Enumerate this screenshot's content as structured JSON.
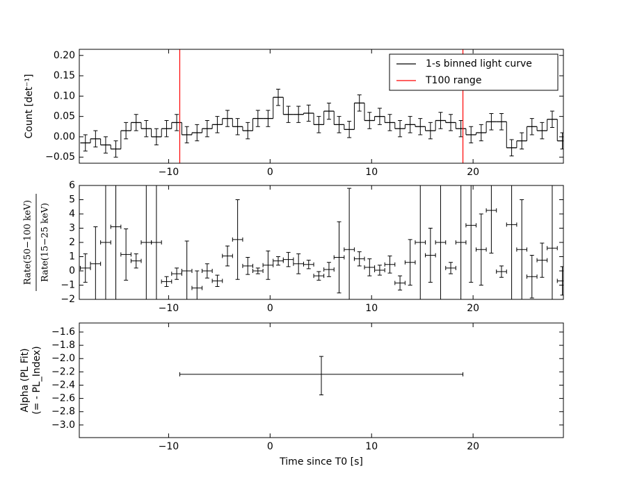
{
  "chart_data": [
    {
      "type": "step",
      "ylabel": "Count [det⁻¹]",
      "xlim": [
        -18.8,
        28.9
      ],
      "ylim": [
        -0.065,
        0.215
      ],
      "xticks": [
        {
          "value": -10,
          "label": "−10"
        },
        0,
        10,
        20
      ],
      "yticks": [
        {
          "value": -0.05,
          "label": "−0.05"
        },
        {
          "value": 0,
          "label": "0.00"
        },
        {
          "value": 0.05,
          "label": "0.05"
        },
        {
          "value": 0.1,
          "label": "0.10"
        },
        {
          "value": 0.15,
          "label": "0.15"
        },
        {
          "value": 0.2,
          "label": "0.20"
        }
      ],
      "legend": "upper right",
      "series": [
        {
          "name": "1-s binned light curve",
          "color": "#000000",
          "x": [
            -18.2,
            -17.2,
            -16.2,
            -15.2,
            -14.2,
            -13.2,
            -12.2,
            -11.2,
            -10.2,
            -9.2,
            -8.2,
            -7.2,
            -6.2,
            -5.2,
            -4.2,
            -3.2,
            -2.2,
            -1.2,
            -0.2,
            0.8,
            1.8,
            2.8,
            3.8,
            4.8,
            5.8,
            6.8,
            7.8,
            8.8,
            9.8,
            10.8,
            11.8,
            12.8,
            13.8,
            14.8,
            15.8,
            16.8,
            17.8,
            18.8,
            19.8,
            20.8,
            21.8,
            22.8,
            23.8,
            24.8,
            25.8,
            26.8,
            27.8,
            28.8
          ],
          "bin_width": 1,
          "values": [
            -0.015,
            -0.005,
            -0.02,
            -0.03,
            0.015,
            0.035,
            0.02,
            0.0,
            0.02,
            0.035,
            0.005,
            0.01,
            0.02,
            0.03,
            0.045,
            0.025,
            0.015,
            0.045,
            0.045,
            0.097,
            0.055,
            0.055,
            0.058,
            0.03,
            0.063,
            0.03,
            0.018,
            0.083,
            0.04,
            0.05,
            0.035,
            0.02,
            0.03,
            0.025,
            0.015,
            0.04,
            0.035,
            0.02,
            0.005,
            0.01,
            0.037,
            0.037,
            -0.027,
            -0.01,
            0.025,
            0.015,
            0.043,
            -0.01
          ],
          "errors": [
            0.02,
            0.02,
            0.02,
            0.02,
            0.02,
            0.02,
            0.02,
            0.02,
            0.02,
            0.02,
            0.02,
            0.02,
            0.02,
            0.02,
            0.02,
            0.02,
            0.02,
            0.02,
            0.02,
            0.02,
            0.02,
            0.02,
            0.02,
            0.02,
            0.02,
            0.02,
            0.02,
            0.02,
            0.02,
            0.02,
            0.02,
            0.02,
            0.02,
            0.02,
            0.02,
            0.02,
            0.02,
            0.02,
            0.02,
            0.02,
            0.02,
            0.02,
            0.02,
            0.02,
            0.02,
            0.02,
            0.02,
            0.02
          ]
        },
        {
          "name": "T100 range",
          "color": "#ff0000",
          "vlines": [
            -8.9,
            19.0
          ]
        }
      ]
    },
    {
      "type": "errorbar",
      "ylabel": [
        "Rate(50−100 keV)",
        "Rate(15−25 keV)"
      ],
      "xlim": [
        -18.8,
        28.9
      ],
      "ylim": [
        -2,
        6
      ],
      "xticks": [
        {
          "value": -10,
          "label": "−10"
        },
        0,
        10,
        20
      ],
      "yticks": [
        {
          "value": -2,
          "label": "−2"
        },
        {
          "value": -1,
          "label": "−1"
        },
        0,
        1,
        2,
        3,
        4,
        5,
        6
      ],
      "color": "#000000",
      "x": [
        -18.2,
        -17.2,
        -16.2,
        -15.2,
        -14.2,
        -13.2,
        -12.2,
        -11.2,
        -10.2,
        -9.2,
        -8.2,
        -7.2,
        -6.2,
        -5.2,
        -4.2,
        -3.2,
        -2.2,
        -1.2,
        -0.2,
        0.8,
        1.8,
        2.8,
        3.8,
        4.8,
        5.8,
        6.8,
        7.8,
        8.8,
        9.8,
        10.8,
        11.8,
        12.8,
        13.8,
        14.8,
        15.8,
        16.8,
        17.8,
        18.8,
        19.8,
        20.8,
        21.8,
        22.8,
        23.8,
        24.8,
        25.8,
        26.8,
        27.8,
        28.8
      ],
      "xerr": 0.5,
      "values": [
        0.2,
        0.5,
        2,
        3.1,
        1.15,
        0.7,
        2,
        2,
        -0.75,
        -0.2,
        0,
        -1.2,
        0,
        -0.7,
        1.05,
        2.2,
        0.35,
        0,
        0.4,
        0.7,
        0.8,
        0.5,
        0.45,
        -0.35,
        0.1,
        0.95,
        1.5,
        0.85,
        0.25,
        0.05,
        0.45,
        -0.85,
        0.6,
        2,
        1.1,
        2,
        0.2,
        2,
        3.2,
        1.5,
        4.25,
        -0.05,
        3.25,
        1.5,
        -0.4,
        0.75,
        1.6,
        -0.7
      ],
      "errors": [
        1.0,
        2.6,
        8,
        6,
        1.8,
        0.5,
        8,
        8,
        0.35,
        0.4,
        2.1,
        1.2,
        0.5,
        0.4,
        0.7,
        2.8,
        0.6,
        0.2,
        1.0,
        0.3,
        0.5,
        0.7,
        0.3,
        0.3,
        0.5,
        2.5,
        4.3,
        0.5,
        0.6,
        0.35,
        0.6,
        0.5,
        1.6,
        8,
        1.9,
        8,
        0.4,
        8,
        4,
        2.5,
        3,
        0.4,
        6,
        3.5,
        1.5,
        1.2,
        5,
        1.0
      ]
    },
    {
      "type": "errorbar",
      "ylabel": [
        "Alpha (PL Fit)",
        "(= - PL_Index)"
      ],
      "xlabel": "Time since T0 [s]",
      "xlim": [
        -18.8,
        28.9
      ],
      "ylim": [
        -3.19,
        -1.464
      ],
      "xticks": [
        {
          "value": -10,
          "label": "−10"
        },
        0,
        10,
        20
      ],
      "yticks": [
        {
          "value": -3.0,
          "label": "−3.0"
        },
        {
          "value": -2.8,
          "label": "−2.8"
        },
        {
          "value": -2.6,
          "label": "−2.6"
        },
        {
          "value": -2.4,
          "label": "−2.4"
        },
        {
          "value": -2.2,
          "label": "−2.2"
        },
        {
          "value": -2.0,
          "label": "−2.0"
        },
        {
          "value": -1.8,
          "label": "−1.8"
        },
        {
          "value": -1.6,
          "label": "−1.6"
        }
      ],
      "color": "#000000",
      "x": [
        5.05
      ],
      "xerr": [
        13.95
      ],
      "values": [
        -2.237
      ],
      "errors_plus": [
        0.27
      ],
      "errors_minus": [
        0.31
      ]
    }
  ]
}
